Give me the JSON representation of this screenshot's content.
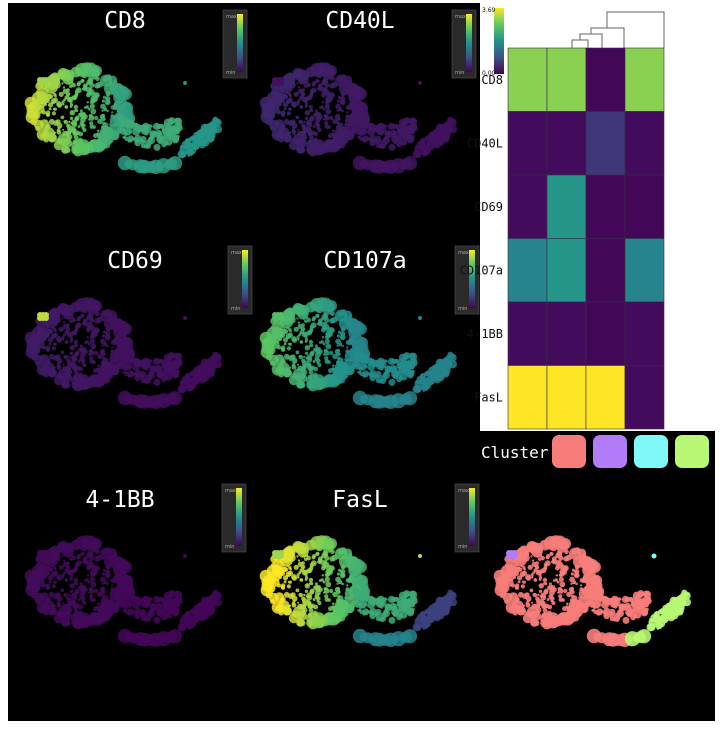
{
  "panels": [
    {
      "id": "cd8",
      "title": "CD8",
      "min_label": "min",
      "max_label": "max",
      "coloring": [
        0.78,
        0.62,
        0.55,
        0.52
      ],
      "blob_level": 0.85
    },
    {
      "id": "cd40l",
      "title": "CD40L",
      "min_label": "min",
      "max_label": "max",
      "coloring": [
        0.1,
        0.07,
        0.06,
        0.05
      ],
      "blob_level": 0.05
    },
    {
      "id": "cd69",
      "title": "CD69",
      "min_label": "min",
      "max_label": "max",
      "coloring": [
        0.07,
        0.05,
        0.04,
        0.04
      ],
      "blob_level": 0.9
    },
    {
      "id": "cd107a",
      "title": "CD107a",
      "min_label": "min",
      "max_label": "max",
      "coloring": [
        0.62,
        0.48,
        0.45,
        0.45
      ],
      "blob_level": 0.7
    },
    {
      "id": "41bb",
      "title": "4-1BB",
      "min_label": "min",
      "max_label": "max",
      "coloring": [
        0.03,
        0.02,
        0.02,
        0.02
      ],
      "blob_level": 0.02
    },
    {
      "id": "fasl",
      "title": "FasL",
      "min_label": "min",
      "max_label": "max",
      "coloring": [
        0.88,
        0.62,
        0.45,
        0.2
      ],
      "blob_level": 0.85,
      "small_dot_level": 0.9
    }
  ],
  "heatmap": {
    "rows": [
      "CD8",
      "CD40L",
      "CD69",
      "CD107a",
      "4-1BB",
      "FasL"
    ],
    "values": [
      [
        0.82,
        0.82,
        0.02,
        0.82
      ],
      [
        0.03,
        0.03,
        0.17,
        0.03
      ],
      [
        0.03,
        0.52,
        0.02,
        0.02
      ],
      [
        0.45,
        0.52,
        0.02,
        0.45
      ],
      [
        0.03,
        0.03,
        0.02,
        0.03
      ],
      [
        1.0,
        1.0,
        1.0,
        0.03
      ]
    ],
    "colorbar": {
      "max_label": "3.69",
      "min_label": "0.00"
    }
  },
  "cluster": {
    "label": "Cluster",
    "colors": [
      "#f87d7a",
      "#b27cf8",
      "#7ef8f8",
      "#b8f874"
    ]
  }
}
